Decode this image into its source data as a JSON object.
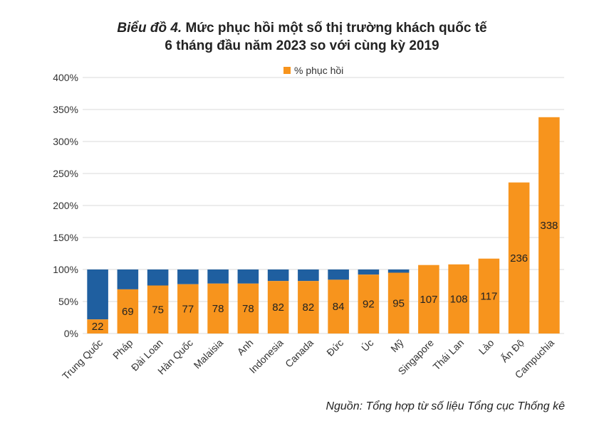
{
  "chart_data": {
    "type": "bar",
    "title_lead": "Biểu đồ 4.",
    "title_rest": " Mức phục hồi một số thị trường khách quốc tế",
    "title_line2": "6 tháng đầu năm 2023 so với cùng kỳ 2019",
    "categories": [
      "Trung Quốc",
      "Pháp",
      "Đài Loan",
      "Hàn Quốc",
      "Malaisia",
      "Anh",
      "Indonesia",
      "Canada",
      "Đức",
      "Úc",
      "Mỹ",
      "Singapore",
      "Thái Lan",
      "Lào",
      "Ấn Độ",
      "Campuchia"
    ],
    "series": [
      {
        "name": "% phục hồi",
        "values": [
          22,
          69,
          75,
          77,
          78,
          78,
          82,
          82,
          84,
          92,
          95,
          107,
          108,
          117,
          236,
          338
        ],
        "color": "#F7941D"
      }
    ],
    "baseline": 100,
    "remainder_color": "#1F5FA0",
    "ylim": [
      0,
      400
    ],
    "yticks": [
      "0%",
      "50%",
      "100%",
      "150%",
      "200%",
      "250%",
      "300%",
      "350%",
      "400%"
    ],
    "grid": true,
    "legend_position": "top-center"
  },
  "source": "Nguồn: Tổng hợp từ số liệu Tổng cục Thống kê"
}
